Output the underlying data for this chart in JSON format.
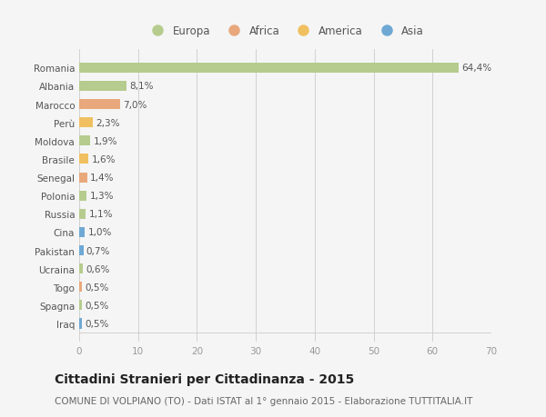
{
  "countries": [
    "Romania",
    "Albania",
    "Marocco",
    "Perù",
    "Moldova",
    "Brasile",
    "Senegal",
    "Polonia",
    "Russia",
    "Cina",
    "Pakistan",
    "Ucraina",
    "Togo",
    "Spagna",
    "Iraq"
  ],
  "values": [
    64.4,
    8.1,
    7.0,
    2.3,
    1.9,
    1.6,
    1.4,
    1.3,
    1.1,
    1.0,
    0.7,
    0.6,
    0.5,
    0.5,
    0.5
  ],
  "labels": [
    "64,4%",
    "8,1%",
    "7,0%",
    "2,3%",
    "1,9%",
    "1,6%",
    "1,4%",
    "1,3%",
    "1,1%",
    "1,0%",
    "0,7%",
    "0,6%",
    "0,5%",
    "0,5%",
    "0,5%"
  ],
  "continents": [
    "Europa",
    "Europa",
    "Africa",
    "America",
    "Europa",
    "America",
    "Africa",
    "Europa",
    "Europa",
    "Asia",
    "Asia",
    "Europa",
    "Africa",
    "Europa",
    "Asia"
  ],
  "continent_colors": {
    "Europa": "#b5cc8e",
    "Africa": "#e8a87c",
    "America": "#f0c060",
    "Asia": "#6fa8d4"
  },
  "legend_order": [
    "Europa",
    "Africa",
    "America",
    "Asia"
  ],
  "legend_colors": [
    "#b5cc8e",
    "#e8a87c",
    "#f0c060",
    "#6fa8d4"
  ],
  "xlim": [
    0,
    70
  ],
  "xticks": [
    0,
    10,
    20,
    30,
    40,
    50,
    60,
    70
  ],
  "title": "Cittadini Stranieri per Cittadinanza - 2015",
  "subtitle": "COMUNE DI VOLPIANO (TO) - Dati ISTAT al 1° gennaio 2015 - Elaborazione TUTTITALIA.IT",
  "bg_color": "#f5f5f5",
  "bar_height": 0.55,
  "title_fontsize": 10,
  "subtitle_fontsize": 7.5,
  "label_fontsize": 7.5,
  "tick_fontsize": 7.5,
  "legend_fontsize": 8.5
}
